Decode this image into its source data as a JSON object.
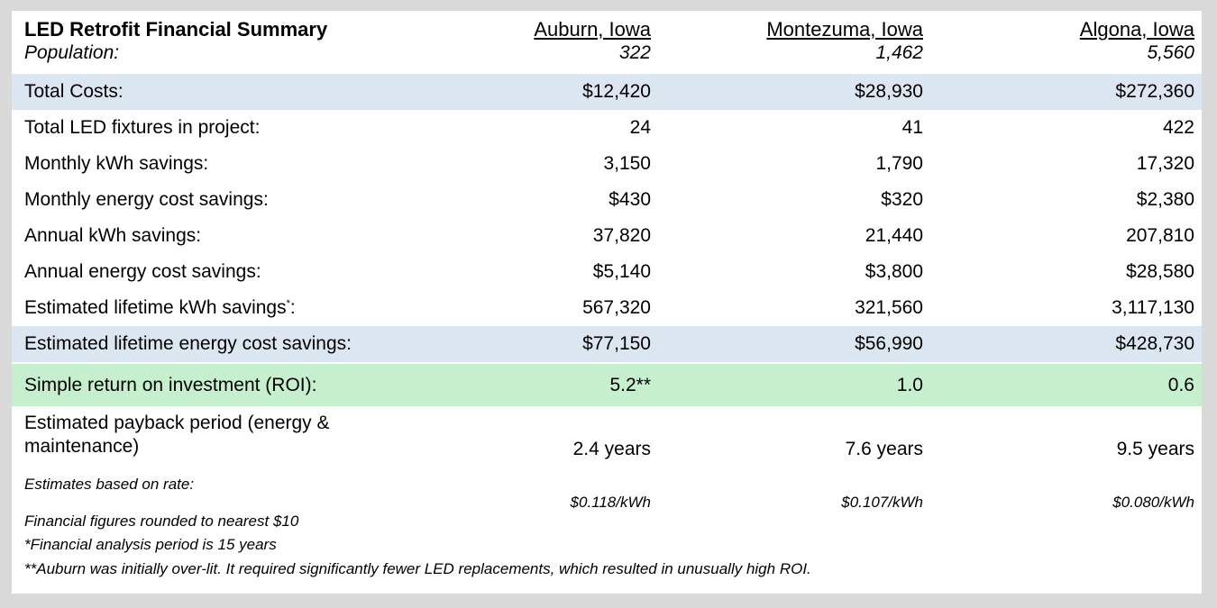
{
  "header": {
    "title": "LED Retrofit Financial Summary",
    "population_label": "Population:",
    "cities": [
      {
        "name": "Auburn, Iowa",
        "population": "322"
      },
      {
        "name": "Montezuma, Iowa",
        "population": "1,462"
      },
      {
        "name": "Algona, Iowa",
        "population": "5,560"
      }
    ]
  },
  "rows": [
    {
      "label": "Total Costs:",
      "values": [
        "$12,420",
        "$28,930",
        "$272,360"
      ]
    },
    {
      "label": "Total LED fixtures in project:",
      "values": [
        "24",
        "41",
        "422"
      ]
    },
    {
      "label": "Monthly kWh savings:",
      "values": [
        "3,150",
        "1,790",
        "17,320"
      ]
    },
    {
      "label": "Monthly energy cost savings:",
      "values": [
        "$430",
        "$320",
        "$2,380"
      ]
    },
    {
      "label": "Annual kWh savings:",
      "values": [
        "37,820",
        "21,440",
        "207,810"
      ]
    },
    {
      "label": "Annual energy cost savings:",
      "values": [
        "$5,140",
        "$3,800",
        "$28,580"
      ]
    },
    {
      "label": "Estimated lifetime kWh savings",
      "label_sup": "*",
      "label_suffix": ":",
      "values": [
        "567,320",
        "321,560",
        "3,117,130"
      ]
    },
    {
      "label": "Estimated lifetime energy cost savings:",
      "values": [
        "$77,150",
        "$56,990",
        "$428,730"
      ]
    },
    {
      "label": "Simple return on investment (ROI):",
      "values": [
        "5.2**",
        "1.0",
        "0.6"
      ]
    },
    {
      "label_line1": "Estimated payback period (energy &",
      "label_line2": "maintenance)",
      "values": [
        "2.4 years",
        "7.6 years",
        "9.5 years"
      ]
    },
    {
      "label": "Estimates based on rate:",
      "values": [
        "$0.118/kWh",
        "$0.107/kWh",
        "$0.080/kWh"
      ]
    }
  ],
  "notes": [
    "Financial figures rounded to nearest $10",
    "*Financial analysis period is 15 years",
    "**Auburn was initially over-lit. It required significantly fewer LED replacements, which resulted in unusually high ROI."
  ],
  "colors": {
    "blue_band": "#dce6f1",
    "green_band": "#c6efce",
    "frame": "#d9d9d9"
  }
}
